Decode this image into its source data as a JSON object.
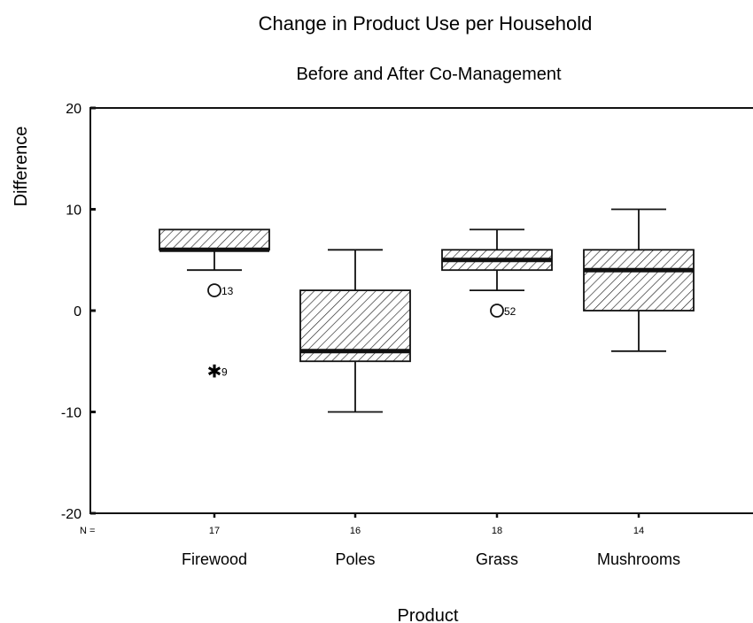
{
  "chart_data": {
    "type": "boxplot",
    "title": "Change in Product Use per Household",
    "subtitle": "Before and After Co-Management",
    "xlabel": "Product",
    "ylabel": "Difference",
    "ylim": [
      -20,
      20
    ],
    "yticks": [
      "20",
      "10",
      "0",
      "-10",
      "-20"
    ],
    "n_label": "N =",
    "categories": [
      {
        "name": "Firewood",
        "n": "17",
        "whisker_low": 4,
        "q1": 6,
        "median": 6,
        "q3": 8,
        "whisker_high": 8,
        "outliers": [
          {
            "value": 2,
            "label": "13",
            "marker": "circle"
          },
          {
            "value": -6,
            "label": "9",
            "marker": "star"
          }
        ]
      },
      {
        "name": "Poles",
        "n": "16",
        "whisker_low": -10,
        "q1": -5,
        "median": -4,
        "q3": 2,
        "whisker_high": 6,
        "outliers": []
      },
      {
        "name": "Grass",
        "n": "18",
        "whisker_low": 2,
        "q1": 4,
        "median": 5,
        "q3": 6,
        "whisker_high": 8,
        "outliers": [
          {
            "value": 0,
            "label": "52",
            "marker": "circle"
          }
        ]
      },
      {
        "name": "Mushrooms",
        "n": "14",
        "whisker_low": -4,
        "q1": 0,
        "median": 4,
        "q3": 6,
        "whisker_high": 10,
        "outliers": []
      }
    ],
    "box_fill": "diagonal-hatch",
    "grid": false
  }
}
